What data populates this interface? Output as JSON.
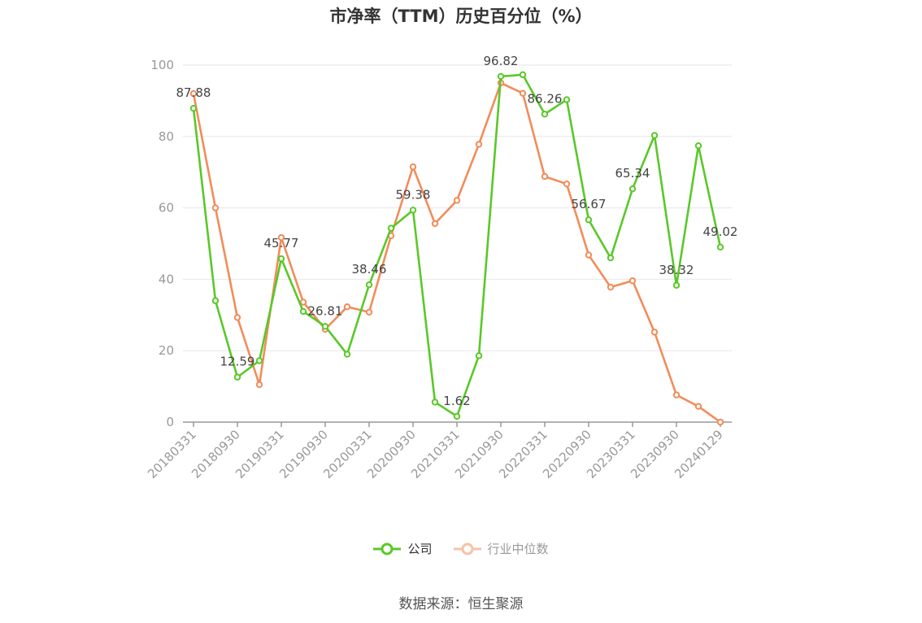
{
  "chart_data": {
    "type": "line",
    "title": "市净率（TTM）历史百分位（%）",
    "xlabel": "",
    "ylabel": "",
    "ylim": [
      0,
      100
    ],
    "yticks": [
      "0",
      "20",
      "40",
      "60",
      "80",
      "100"
    ],
    "xtick_labels": [
      "20180331",
      "20180930",
      "20190331",
      "20190930",
      "20200331",
      "20200930",
      "20210331",
      "20210930",
      "20220331",
      "20220930",
      "20230331",
      "20230930",
      "20240129"
    ],
    "x": [
      "20180331",
      "20180630",
      "20180930",
      "20181231",
      "20190331",
      "20190630",
      "20190930",
      "20191231",
      "20200331",
      "20200630",
      "20200930",
      "20201231",
      "20210331",
      "20210630",
      "20210930",
      "20211231",
      "20220331",
      "20220630",
      "20220930",
      "20221231",
      "20230331",
      "20230630",
      "20230930",
      "20231231",
      "20240129"
    ],
    "series": [
      {
        "name": "公司",
        "color": "#5ac829",
        "values": [
          87.88,
          34.0,
          12.59,
          17.2,
          45.77,
          31.0,
          26.81,
          19.0,
          38.46,
          54.3,
          59.38,
          5.6,
          1.62,
          18.6,
          96.82,
          97.3,
          86.26,
          90.3,
          56.67,
          46.0,
          65.34,
          80.3,
          38.32,
          77.4,
          49.02
        ],
        "labels": [
          "87.88",
          "",
          "12.59",
          "",
          "45.77",
          "",
          "26.81",
          "",
          "38.46",
          "",
          "59.38",
          "",
          "1.62",
          "",
          "96.82",
          "",
          "86.26",
          "",
          "56.67",
          "",
          "65.34",
          "",
          "38.32",
          "",
          "49.02"
        ]
      },
      {
        "name": "行业中位数",
        "color": "#f28c5a",
        "values": [
          92.0,
          60.0,
          29.3,
          10.5,
          51.7,
          33.6,
          26.0,
          32.3,
          30.8,
          52.2,
          71.5,
          55.6,
          62.1,
          77.8,
          95.0,
          92.1,
          68.8,
          66.7,
          46.8,
          37.8,
          39.6,
          25.2,
          7.6,
          4.4,
          0.0
        ]
      }
    ],
    "legend": "bottom-center",
    "grid": true
  },
  "source_text": "数据来源：恒生聚源"
}
